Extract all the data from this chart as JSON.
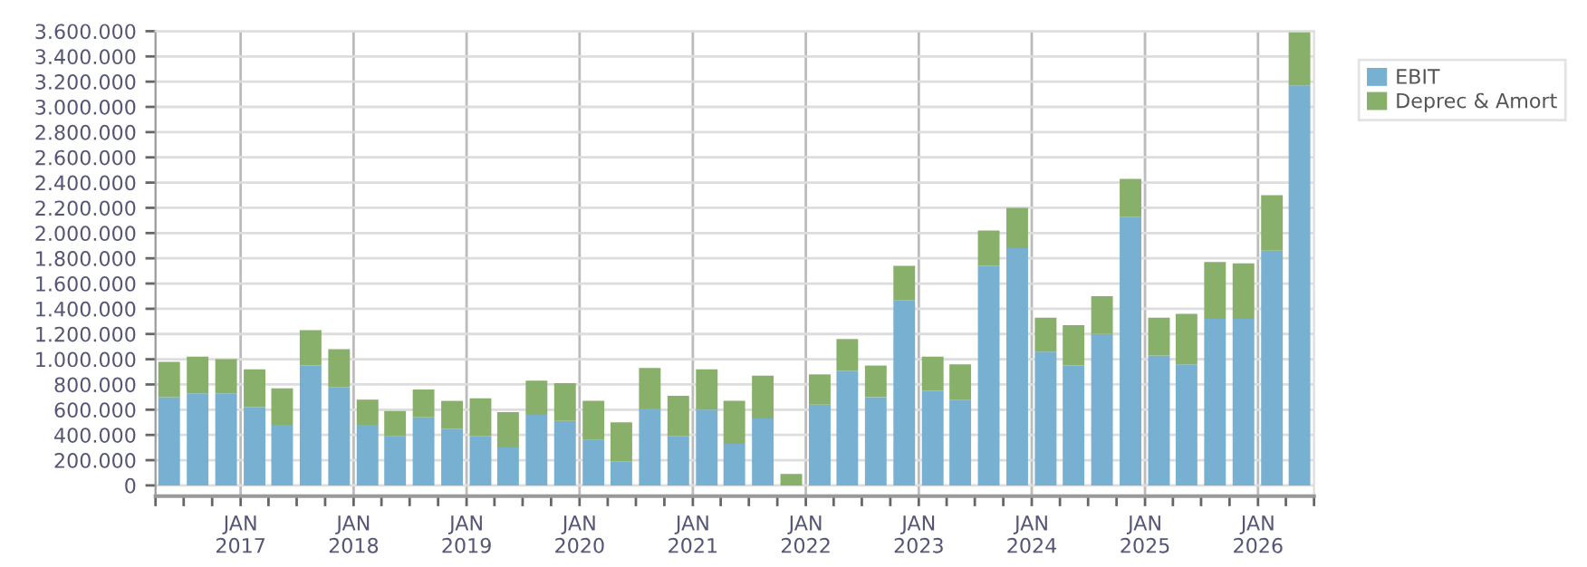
{
  "chart_data": {
    "type": "bar",
    "stacked": true,
    "x": [
      "2016-05-15",
      "2016-08-15",
      "2016-11-15",
      "2017-02-15",
      "2017-05-15",
      "2017-08-15",
      "2017-11-15",
      "2018-02-15",
      "2018-05-15",
      "2018-08-15",
      "2018-11-15",
      "2019-02-15",
      "2019-05-15",
      "2019-08-15",
      "2019-11-15",
      "2020-02-15",
      "2020-05-15",
      "2020-08-15",
      "2020-11-15",
      "2021-02-15",
      "2021-05-15",
      "2021-08-15",
      "2021-11-15",
      "2022-02-15",
      "2022-05-15",
      "2022-08-15",
      "2022-11-15",
      "2023-02-15",
      "2023-05-15",
      "2023-08-15",
      "2023-11-15",
      "2024-02-15",
      "2024-05-15",
      "2024-08-15",
      "2024-11-15",
      "2025-02-15",
      "2025-05-15",
      "2025-08-15",
      "2025-11-15",
      "2026-02-15",
      "2026-05-15"
    ],
    "series": [
      {
        "name": "EBIT",
        "color": "#77b0d1",
        "values": [
          700000,
          730000,
          730000,
          620000,
          480000,
          950000,
          780000,
          480000,
          390000,
          540000,
          450000,
          390000,
          300000,
          560000,
          510000,
          360000,
          190000,
          610000,
          390000,
          600000,
          330000,
          530000,
          null,
          640000,
          910000,
          700000,
          1470000,
          750000,
          680000,
          1740000,
          1880000,
          1060000,
          950000,
          1200000,
          2130000,
          1030000,
          960000,
          1320000,
          1320000,
          1860000,
          3170000
        ]
      },
      {
        "name": "Deprec & Amort",
        "color": "#88b06a",
        "values": [
          280000,
          290000,
          270000,
          300000,
          290000,
          280000,
          300000,
          200000,
          200000,
          220000,
          220000,
          300000,
          280000,
          270000,
          300000,
          310000,
          310000,
          320000,
          320000,
          320000,
          340000,
          340000,
          90000,
          240000,
          250000,
          250000,
          270000,
          270000,
          280000,
          280000,
          320000,
          270000,
          320000,
          300000,
          300000,
          300000,
          400000,
          450000,
          440000,
          440000,
          420000
        ]
      }
    ],
    "xlim": [
      "2016-04-01",
      "2026-07-01"
    ],
    "xticks": [
      {
        "value": "2016-04-01",
        "label": null
      },
      {
        "value": "2016-07-01",
        "label": null
      },
      {
        "value": "2016-10-01",
        "label": null
      },
      {
        "value": "2017-01-01",
        "label": "JAN\n2017"
      },
      {
        "value": "2017-04-01",
        "label": null
      },
      {
        "value": "2017-07-01",
        "label": null
      },
      {
        "value": "2017-10-01",
        "label": null
      },
      {
        "value": "2018-01-01",
        "label": "JAN\n2018"
      },
      {
        "value": "2018-04-01",
        "label": null
      },
      {
        "value": "2018-07-01",
        "label": null
      },
      {
        "value": "2018-10-01",
        "label": null
      },
      {
        "value": "2019-01-01",
        "label": "JAN\n2019"
      },
      {
        "value": "2019-04-01",
        "label": null
      },
      {
        "value": "2019-07-01",
        "label": null
      },
      {
        "value": "2019-10-01",
        "label": null
      },
      {
        "value": "2020-01-01",
        "label": "JAN\n2020"
      },
      {
        "value": "2020-04-01",
        "label": null
      },
      {
        "value": "2020-07-01",
        "label": null
      },
      {
        "value": "2020-10-01",
        "label": null
      },
      {
        "value": "2021-01-01",
        "label": "JAN\n2021"
      },
      {
        "value": "2021-04-01",
        "label": null
      },
      {
        "value": "2021-07-01",
        "label": null
      },
      {
        "value": "2021-10-01",
        "label": null
      },
      {
        "value": "2022-01-01",
        "label": "JAN\n2022"
      },
      {
        "value": "2022-04-01",
        "label": null
      },
      {
        "value": "2022-07-01",
        "label": null
      },
      {
        "value": "2022-10-01",
        "label": null
      },
      {
        "value": "2023-01-01",
        "label": "JAN\n2023"
      },
      {
        "value": "2023-04-01",
        "label": null
      },
      {
        "value": "2023-07-01",
        "label": null
      },
      {
        "value": "2023-10-01",
        "label": null
      },
      {
        "value": "2024-01-01",
        "label": "JAN\n2024"
      },
      {
        "value": "2024-04-01",
        "label": null
      },
      {
        "value": "2024-07-01",
        "label": null
      },
      {
        "value": "2024-10-01",
        "label": null
      },
      {
        "value": "2025-01-01",
        "label": "JAN\n2025"
      },
      {
        "value": "2025-04-01",
        "label": null
      },
      {
        "value": "2025-07-01",
        "label": null
      },
      {
        "value": "2025-10-01",
        "label": null
      },
      {
        "value": "2026-01-01",
        "label": "JAN\n2026"
      },
      {
        "value": "2026-04-01",
        "label": null
      },
      {
        "value": "2026-07-01",
        "label": null
      }
    ],
    "ylim": [
      -85000,
      3600000
    ],
    "yticks": [
      {
        "value": 0,
        "label": "0"
      },
      {
        "value": 200000,
        "label": "200.000"
      },
      {
        "value": 400000,
        "label": "400.000"
      },
      {
        "value": 600000,
        "label": "600.000"
      },
      {
        "value": 800000,
        "label": "800.000"
      },
      {
        "value": 1000000,
        "label": "1.000.000"
      },
      {
        "value": 1200000,
        "label": "1.200.000"
      },
      {
        "value": 1400000,
        "label": "1.400.000"
      },
      {
        "value": 1600000,
        "label": "1.600.000"
      },
      {
        "value": 1800000,
        "label": "1.800.000"
      },
      {
        "value": 2000000,
        "label": "2.000.000"
      },
      {
        "value": 2200000,
        "label": "2.200.000"
      },
      {
        "value": 2400000,
        "label": "2.400.000"
      },
      {
        "value": 2600000,
        "label": "2.600.000"
      },
      {
        "value": 2800000,
        "label": "2.800.000"
      },
      {
        "value": 3000000,
        "label": "3.000.000"
      },
      {
        "value": 3200000,
        "label": "3.200.000"
      },
      {
        "value": 3400000,
        "label": "3.400.000"
      },
      {
        "value": 3600000,
        "label": "3.600.000"
      }
    ],
    "grid": true,
    "legend": "top right"
  }
}
